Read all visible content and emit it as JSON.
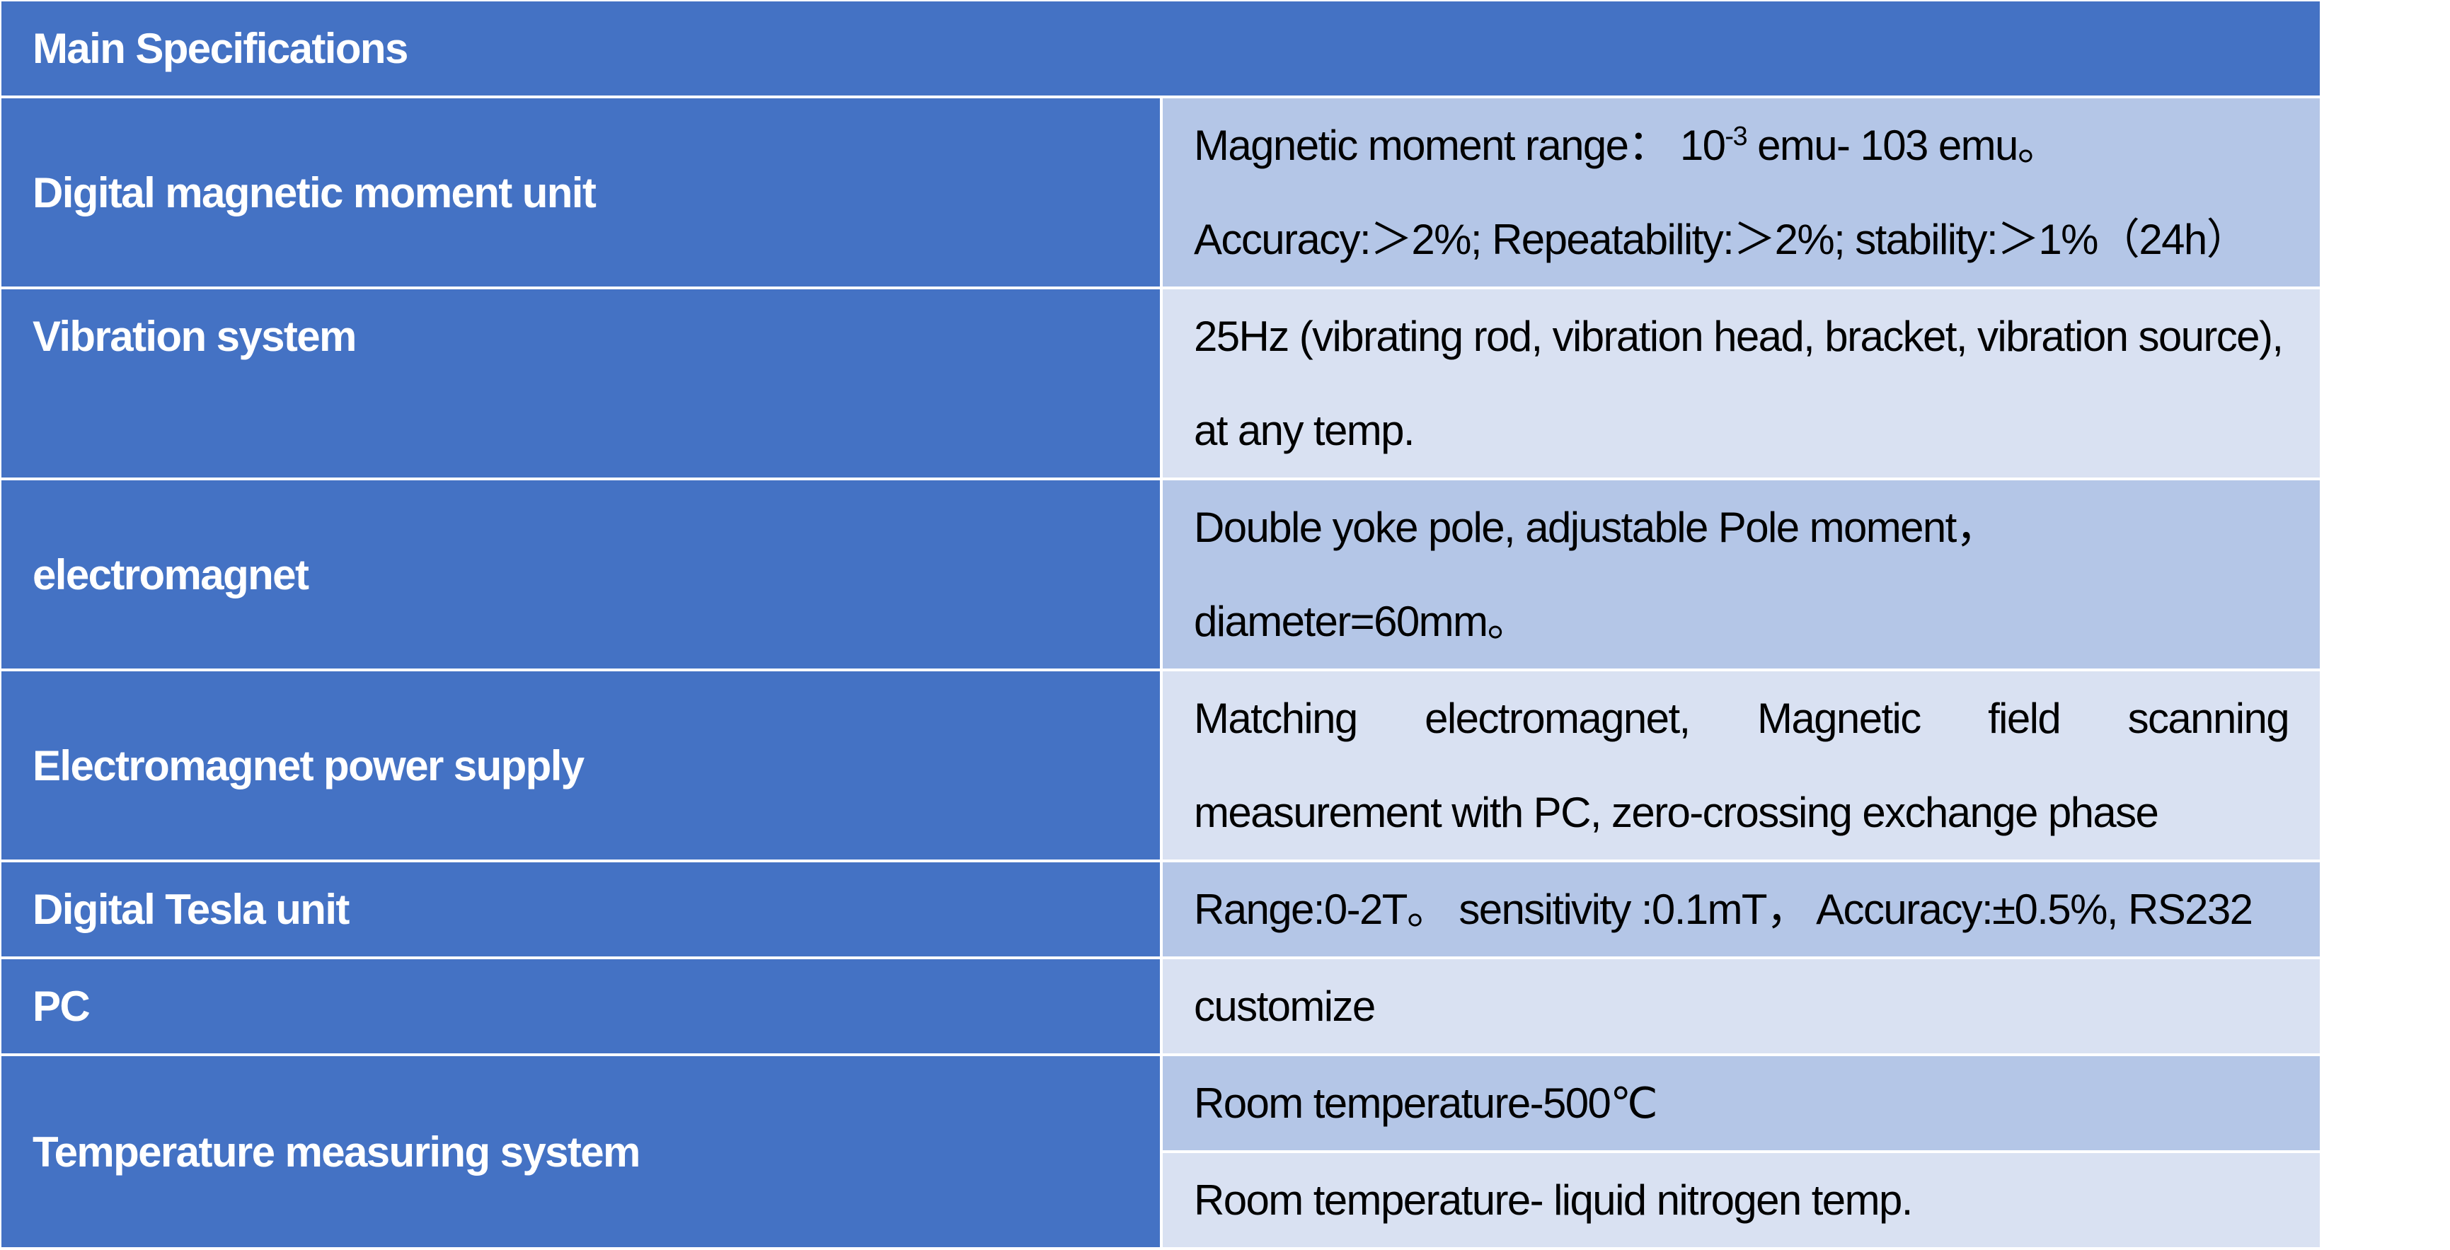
{
  "title": "Main Specifications",
  "colors": {
    "header": "#4472C4",
    "label_cell": "#4472C4",
    "row_dark": "#B4C6E7",
    "row_light": "#D9E1F2"
  },
  "rows": [
    {
      "label": "Digital magnetic moment unit",
      "line1_pre": "Magnetic moment range：  10",
      "line1_sup": "-3",
      "line1_post": " emu- 103 emu。",
      "line2": "Accuracy:＞2%; Repeatability:＞2%; stability:＞1%（24h）"
    },
    {
      "label": "Vibration system",
      "value": "25Hz (vibrating rod, vibration head, bracket, vibration source), at any temp."
    },
    {
      "label": "electromagnet",
      "value": "Double yoke pole, adjustable Pole moment，diameter=60mm。"
    },
    {
      "label": "Electromagnet power supply",
      "value": "Matching electromagnet, Magnetic field scanning measurement with PC, zero-crossing exchange phase"
    },
    {
      "label": "Digital Tesla unit",
      "value": "Range:0-2T。 sensitivity :0.1mT， Accuracy:±0.5%, RS232"
    },
    {
      "label": "PC",
      "value": "customize"
    },
    {
      "label": "Temperature measuring system",
      "value1": "Room temperature-500℃",
      "value2": "Room temperature- liquid nitrogen temp."
    }
  ]
}
